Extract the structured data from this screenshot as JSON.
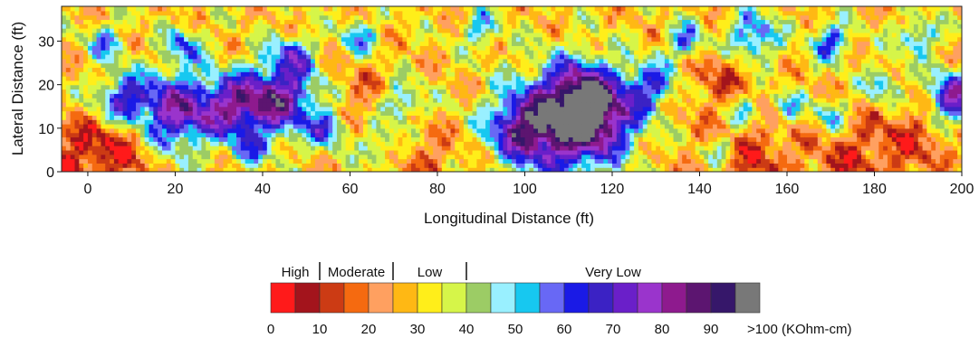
{
  "chart_data": {
    "type": "heatmap",
    "xlabel": "Longitudinal Distance (ft)",
    "ylabel": "Lateral Distance (ft)",
    "xlim": [
      -6,
      200
    ],
    "ylim": [
      0,
      38
    ],
    "x_ticks": [
      0,
      20,
      40,
      60,
      80,
      100,
      120,
      140,
      160,
      180,
      200
    ],
    "y_ticks": [
      0,
      10,
      20,
      30
    ],
    "grid": false,
    "z_unit": "KOhm-cm",
    "color_scale": {
      "bins": [
        {
          "from": 0,
          "to": 5,
          "color": "#ff1a1a"
        },
        {
          "from": 5,
          "to": 10,
          "color": "#a3141c"
        },
        {
          "from": 10,
          "to": 15,
          "color": "#cc3b14"
        },
        {
          "from": 15,
          "to": 20,
          "color": "#f56a10"
        },
        {
          "from": 20,
          "to": 25,
          "color": "#ffa060"
        },
        {
          "from": 25,
          "to": 30,
          "color": "#ffb814"
        },
        {
          "from": 30,
          "to": 35,
          "color": "#ffee1a"
        },
        {
          "from": 35,
          "to": 40,
          "color": "#d6f549"
        },
        {
          "from": 40,
          "to": 45,
          "color": "#9ccc65"
        },
        {
          "from": 45,
          "to": 50,
          "color": "#99f0ff"
        },
        {
          "from": 50,
          "to": 55,
          "color": "#17c8f0"
        },
        {
          "from": 55,
          "to": 60,
          "color": "#6868f5"
        },
        {
          "from": 60,
          "to": 65,
          "color": "#1a1ae6"
        },
        {
          "from": 65,
          "to": 70,
          "color": "#3b22c4"
        },
        {
          "from": 70,
          "to": 75,
          "color": "#6a1fc9"
        },
        {
          "from": 75,
          "to": 80,
          "color": "#9a34cc"
        },
        {
          "from": 80,
          "to": 85,
          "color": "#8e1a8e"
        },
        {
          "from": 85,
          "to": 90,
          "color": "#5c1570"
        },
        {
          "from": 90,
          "to": 95,
          "color": "#36176a"
        },
        {
          "from": 95,
          "to": 100,
          "color": "#787878"
        }
      ],
      "tick_labels": [
        "0",
        "10",
        "20",
        "30",
        "40",
        "50",
        "60",
        "70",
        "80",
        "90",
        ">100 (KOhm-cm)"
      ],
      "tick_values": [
        0,
        10,
        20,
        30,
        40,
        50,
        60,
        70,
        80,
        90,
        100
      ],
      "categories": [
        {
          "label": "High",
          "from": 0,
          "to": 10
        },
        {
          "label": "Moderate",
          "from": 10,
          "to": 25
        },
        {
          "label": "Low",
          "from": 25,
          "to": 40
        },
        {
          "label": "Very Low",
          "from": 40,
          "to": 100
        }
      ]
    }
  }
}
